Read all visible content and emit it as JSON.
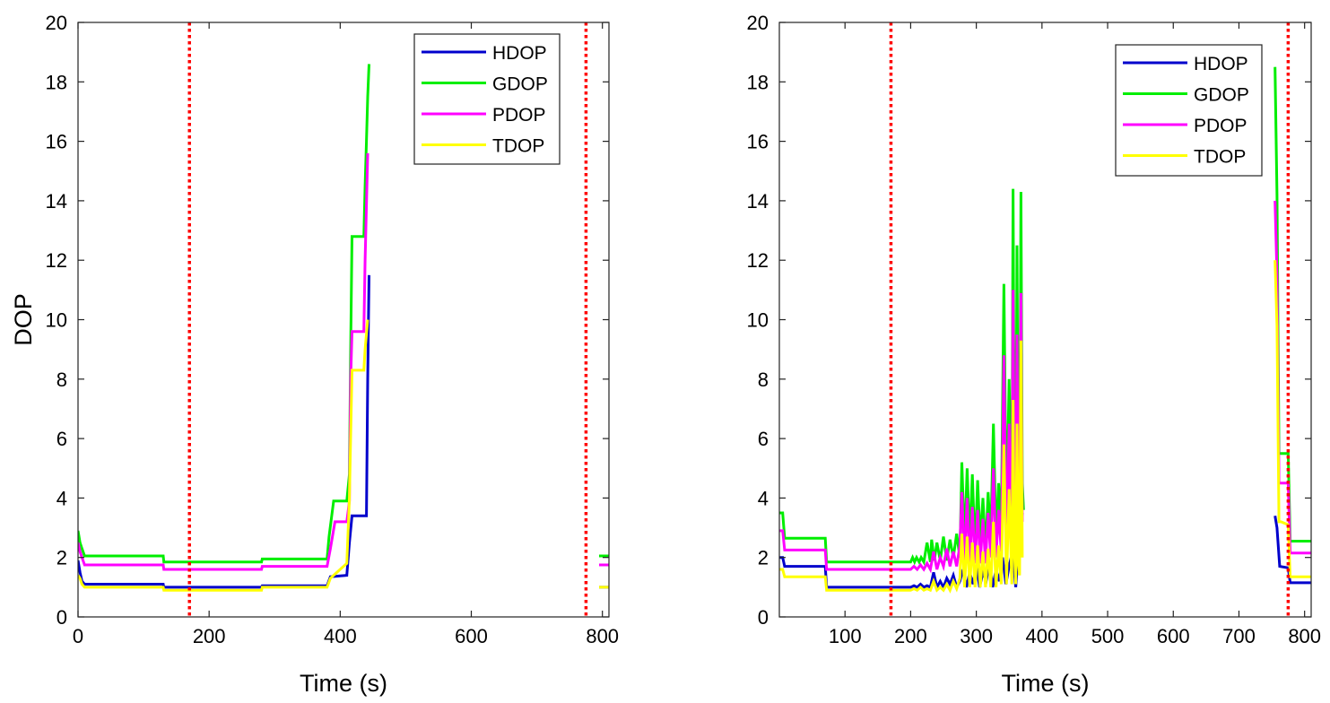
{
  "chart_data": [
    {
      "type": "line",
      "title": "",
      "xlabel": "Time (s)",
      "ylabel": "DOP",
      "xlim": [
        0,
        810
      ],
      "ylim": [
        0,
        20
      ],
      "xticks": [
        0,
        200,
        400,
        600,
        800
      ],
      "yticks": [
        0,
        2,
        4,
        6,
        8,
        10,
        12,
        14,
        16,
        18,
        20
      ],
      "grid": false,
      "legend_position": "top-right",
      "reference_lines": [
        {
          "x": 170,
          "color": "#ff0000",
          "style": "dotted"
        },
        {
          "x": 775,
          "color": "#ff0000",
          "style": "dotted"
        }
      ],
      "series": [
        {
          "name": "HDOP",
          "color": "#0000cc",
          "x": [
            0,
            3,
            6,
            10,
            130,
            131,
            280,
            281,
            380,
            385,
            410,
            414,
            418,
            422,
            440,
            442,
            444,
            null,
            795,
            810
          ],
          "y": [
            1.9,
            1.5,
            1.2,
            1.1,
            1.1,
            1.0,
            1.0,
            1.05,
            1.05,
            1.35,
            1.4,
            2.5,
            3.4,
            3.4,
            3.4,
            8.0,
            11.5,
            null,
            1.0,
            1.0
          ]
        },
        {
          "name": "GDOP",
          "color": "#00ee00",
          "x": [
            0,
            3,
            6,
            10,
            130,
            131,
            280,
            281,
            380,
            383,
            390,
            410,
            414,
            416,
            418,
            425,
            436,
            438,
            440,
            442,
            444,
            null,
            795,
            810
          ],
          "y": [
            2.9,
            2.5,
            2.3,
            2.05,
            2.05,
            1.85,
            1.85,
            1.95,
            1.95,
            2.7,
            3.9,
            3.9,
            4.8,
            9.0,
            12.8,
            12.8,
            12.8,
            14.5,
            16.0,
            17.5,
            18.6,
            null,
            2.05,
            2.05
          ]
        },
        {
          "name": "PDOP",
          "color": "#ff00ff",
          "x": [
            0,
            3,
            6,
            10,
            130,
            131,
            280,
            281,
            380,
            385,
            392,
            410,
            414,
            416,
            418,
            425,
            436,
            438,
            442,
            null,
            795,
            810
          ],
          "y": [
            2.5,
            2.2,
            2.0,
            1.75,
            1.75,
            1.6,
            1.6,
            1.7,
            1.7,
            2.3,
            3.2,
            3.2,
            3.9,
            8.0,
            9.6,
            9.6,
            9.6,
            12.0,
            15.6,
            null,
            1.75,
            1.75
          ]
        },
        {
          "name": "TDOP",
          "color": "#ffff00",
          "x": [
            0,
            3,
            6,
            10,
            130,
            131,
            280,
            281,
            380,
            385,
            410,
            414,
            418,
            425,
            436,
            438,
            442,
            null,
            795,
            810
          ],
          "y": [
            1.4,
            1.3,
            1.1,
            1.0,
            1.0,
            0.9,
            0.9,
            1.0,
            1.0,
            1.3,
            1.8,
            4.0,
            8.3,
            8.3,
            8.3,
            9.0,
            10.0,
            null,
            1.0,
            1.0
          ]
        }
      ]
    },
    {
      "type": "line",
      "title": "",
      "xlabel": "Time (s)",
      "ylabel": "",
      "xlim": [
        0,
        810
      ],
      "ylim": [
        0,
        20
      ],
      "xticks": [
        100,
        200,
        300,
        400,
        500,
        600,
        700,
        800
      ],
      "yticks": [
        0,
        2,
        4,
        6,
        8,
        10,
        12,
        14,
        16,
        18,
        20
      ],
      "grid": false,
      "legend_position": "top-right",
      "reference_lines": [
        {
          "x": 170,
          "color": "#ff0000",
          "style": "dotted"
        },
        {
          "x": 775,
          "color": "#ff0000",
          "style": "dotted"
        }
      ],
      "series": [
        {
          "name": "HDOP",
          "color": "#0000cc",
          "x": [
            0,
            5,
            8,
            70,
            72,
            200,
            205,
            210,
            215,
            220,
            225,
            230,
            235,
            240,
            245,
            250,
            255,
            260,
            265,
            270,
            275,
            280,
            285,
            290,
            295,
            300,
            305,
            310,
            315,
            320,
            325,
            330,
            335,
            340,
            345,
            350,
            355,
            360,
            365,
            370,
            null,
            755,
            758,
            762,
            775,
            778,
            810
          ],
          "y": [
            2.0,
            2.0,
            1.7,
            1.7,
            1.0,
            1.0,
            1.05,
            1.0,
            1.1,
            1.0,
            1.05,
            1.0,
            1.5,
            1.0,
            1.2,
            1.0,
            1.3,
            1.1,
            1.4,
            1.0,
            1.2,
            1.6,
            1.0,
            1.5,
            1.1,
            1.7,
            1.0,
            1.5,
            1.2,
            1.8,
            1.0,
            1.6,
            1.2,
            2.0,
            1.1,
            1.7,
            2.2,
            1.0,
            2.5,
            3.5,
            null,
            3.4,
            3.0,
            1.7,
            1.65,
            1.15,
            1.15
          ]
        },
        {
          "name": "GDOP",
          "color": "#00ee00",
          "x": [
            0,
            5,
            8,
            70,
            72,
            200,
            203,
            206,
            209,
            213,
            216,
            220,
            225,
            230,
            232,
            236,
            240,
            245,
            250,
            255,
            260,
            265,
            270,
            275,
            278,
            282,
            286,
            290,
            294,
            298,
            302,
            306,
            310,
            314,
            318,
            322,
            326,
            330,
            334,
            338,
            342,
            346,
            350,
            354,
            356,
            358,
            360,
            362,
            364,
            366,
            368,
            370,
            372,
            null,
            755,
            758,
            761,
            764,
            775,
            778,
            810
          ],
          "y": [
            3.5,
            3.5,
            2.65,
            2.65,
            1.85,
            1.85,
            2.0,
            1.85,
            2.0,
            1.85,
            2.0,
            1.85,
            2.5,
            1.85,
            2.6,
            1.9,
            2.5,
            1.9,
            2.7,
            1.9,
            2.6,
            2.0,
            2.8,
            2.0,
            5.2,
            2.4,
            5.0,
            2.5,
            4.8,
            2.2,
            4.6,
            2.5,
            4.0,
            2.2,
            4.2,
            2.6,
            6.5,
            2.6,
            4.5,
            3.0,
            11.2,
            3.0,
            8.0,
            3.0,
            14.4,
            5.0,
            3.0,
            12.5,
            4.0,
            3.5,
            14.3,
            4.5,
            3.6,
            null,
            18.5,
            14.2,
            5.5,
            5.5,
            5.5,
            2.55,
            2.55
          ]
        },
        {
          "name": "PDOP",
          "color": "#ff00ff",
          "x": [
            0,
            5,
            8,
            70,
            72,
            200,
            205,
            210,
            215,
            220,
            225,
            230,
            235,
            240,
            245,
            250,
            255,
            260,
            265,
            270,
            275,
            278,
            282,
            286,
            290,
            294,
            298,
            302,
            306,
            310,
            314,
            318,
            322,
            326,
            330,
            334,
            338,
            342,
            346,
            350,
            354,
            356,
            358,
            360,
            362,
            364,
            366,
            368,
            370,
            null,
            755,
            758,
            761,
            764,
            775,
            778,
            810
          ],
          "y": [
            2.9,
            2.9,
            2.25,
            2.25,
            1.6,
            1.6,
            1.7,
            1.6,
            1.75,
            1.6,
            1.8,
            1.6,
            2.2,
            1.6,
            2.0,
            1.7,
            2.3,
            1.7,
            2.2,
            1.7,
            2.4,
            4.2,
            1.8,
            4.0,
            1.8,
            3.7,
            1.8,
            3.6,
            1.8,
            3.3,
            1.8,
            3.5,
            2.0,
            5.0,
            2.0,
            3.6,
            2.2,
            8.8,
            2.2,
            6.5,
            2.2,
            11.0,
            3.5,
            2.2,
            9.5,
            3.0,
            2.5,
            10.9,
            3.2,
            null,
            14.0,
            11.5,
            4.5,
            4.5,
            4.5,
            2.15,
            2.15
          ]
        },
        {
          "name": "TDOP",
          "color": "#ffff00",
          "x": [
            0,
            5,
            8,
            70,
            72,
            200,
            205,
            210,
            215,
            220,
            225,
            230,
            235,
            240,
            245,
            250,
            255,
            260,
            265,
            270,
            275,
            278,
            282,
            286,
            290,
            294,
            298,
            302,
            306,
            310,
            314,
            318,
            322,
            326,
            330,
            334,
            338,
            342,
            346,
            350,
            354,
            356,
            358,
            360,
            362,
            364,
            366,
            368,
            370,
            null,
            755,
            758,
            761,
            764,
            775,
            778,
            810
          ],
          "y": [
            1.6,
            1.6,
            1.35,
            1.35,
            0.9,
            0.9,
            0.95,
            0.9,
            1.0,
            0.9,
            0.95,
            0.9,
            1.2,
            0.9,
            1.0,
            0.9,
            1.1,
            0.9,
            1.2,
            0.95,
            1.3,
            2.8,
            1.0,
            2.7,
            1.0,
            2.5,
            1.0,
            2.4,
            1.0,
            2.2,
            1.0,
            2.3,
            1.0,
            3.2,
            1.0,
            2.4,
            1.1,
            5.8,
            1.1,
            4.3,
            1.1,
            7.3,
            2.2,
            1.1,
            6.5,
            1.8,
            1.4,
            9.3,
            2.0,
            null,
            12.0,
            9.8,
            3.2,
            3.2,
            3.1,
            1.35,
            1.35
          ]
        }
      ]
    }
  ]
}
